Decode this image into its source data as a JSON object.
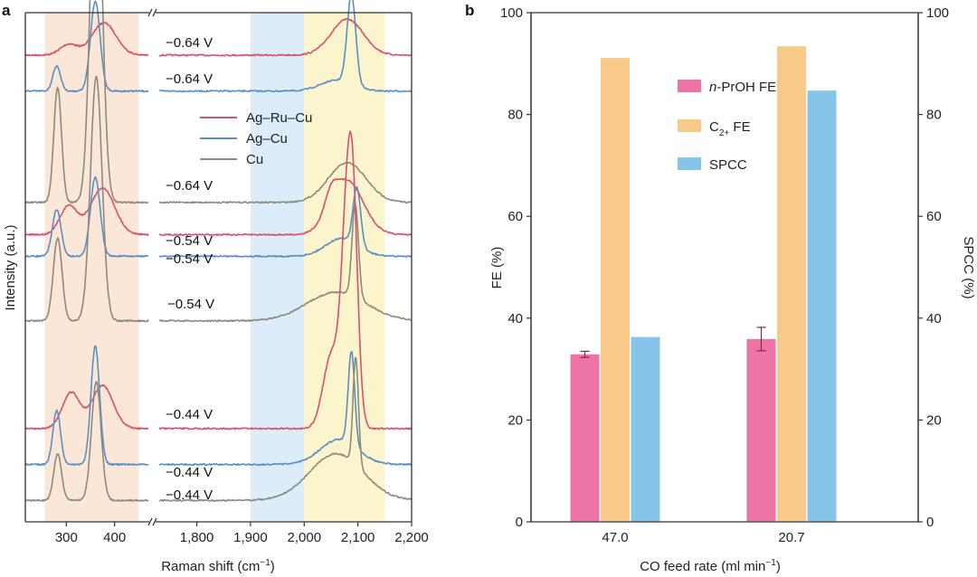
{
  "chart_data": [
    {
      "panel": "a",
      "type": "line",
      "title": "",
      "xlabel": "Raman shift (cm",
      "xlabel_sup": "−1",
      "xlabel_end": ")",
      "ylabel": "Intensity (a.u.)",
      "x_segments": [
        {
          "range": [
            215,
            470
          ],
          "ticks": [
            300,
            400
          ],
          "tick_labels": [
            "300",
            "400"
          ]
        },
        {
          "range": [
            1730,
            2200
          ],
          "ticks": [
            1800,
            1900,
            2000,
            2100,
            2200
          ],
          "tick_labels": [
            "1,800",
            "1,900",
            "2,000",
            "2,100",
            "2,200"
          ]
        }
      ],
      "axis_break": true,
      "shaded_regions": [
        {
          "range": [
            255,
            450
          ],
          "color": "#fbe7d8"
        },
        {
          "range": [
            1900,
            2000
          ],
          "color": "#dcecf8"
        },
        {
          "range": [
            2000,
            2150
          ],
          "color": "#fbf4cc"
        }
      ],
      "legend": {
        "placement": "center",
        "entries": [
          {
            "name": "Ag–Ru–Cu",
            "color": "#d9506e"
          },
          {
            "name": "Ag–Cu",
            "color": "#5b8fc4"
          },
          {
            "name": "Cu",
            "color": "#8c8a7e"
          }
        ]
      },
      "series": [
        {
          "name": "Ag–Ru–Cu",
          "potential": "−0.64 V",
          "offset": 0.0,
          "color": "#d9506e",
          "peaks": [
            [
              305,
              18,
              0.3
            ],
            [
              378,
              25,
              0.9
            ],
            [
              2080,
              30,
              1.0
            ]
          ]
        },
        {
          "name": "Ag–Cu",
          "potential": "−0.64 V",
          "offset": 1.0,
          "color": "#5b8fc4",
          "peaks": [
            [
              280,
              8,
              0.7
            ],
            [
              360,
              10,
              2.5
            ],
            [
              2088,
              8,
              2.5
            ],
            [
              2060,
              30,
              0.3
            ]
          ]
        },
        {
          "name": "Cu",
          "potential": "−0.64 V",
          "offset": 4.1,
          "color": "#8c8a7e",
          "peaks": [
            [
              282,
              8,
              3.2
            ],
            [
              362,
              12,
              10.2
            ],
            [
              2080,
              35,
              1.1
            ]
          ]
        },
        {
          "name": "Ag–Ru–Cu",
          "potential": "−0.54 V",
          "offset": 5.0,
          "color": "#d9506e",
          "peaks": [
            [
              305,
              18,
              0.8
            ],
            [
              375,
              25,
              1.3
            ],
            [
              2050,
              12,
              0.5
            ],
            [
              2080,
              30,
              1.5
            ]
          ]
        },
        {
          "name": "Ag–Cu",
          "potential": "−0.54 V",
          "offset": 5.6,
          "color": "#5b8fc4",
          "peaks": [
            [
              280,
              9,
              1.3
            ],
            [
              360,
              10,
              2.2
            ],
            [
              2098,
              7,
              1.6
            ],
            [
              2070,
              30,
              0.5
            ]
          ]
        },
        {
          "name": "Cu",
          "potential": "−0.54 V",
          "offset": 7.4,
          "color": "#8c8a7e",
          "peaks": [
            [
              282,
              9,
              2.3
            ],
            [
              362,
              12,
              6.8
            ],
            [
              2095,
              6,
              2.6
            ],
            [
              2060,
              55,
              0.8
            ]
          ]
        },
        {
          "name": "Ag–Ru–Cu",
          "potential": "−0.44 V",
          "offset": 10.4,
          "color": "#d9506e",
          "peaks": [
            [
              310,
              18,
              1.0
            ],
            [
              375,
              22,
              1.2
            ],
            [
              2050,
              15,
              2.0
            ],
            [
              2083,
              12,
              7.0
            ],
            [
              2093,
              8,
              2.0
            ]
          ]
        },
        {
          "name": "Ag–Cu",
          "potential": "−0.44 V",
          "offset": 11.4,
          "color": "#5b8fc4",
          "peaks": [
            [
              280,
              8,
              1.5
            ],
            [
              360,
              9,
              3.3
            ],
            [
              2088,
              6,
              2.6
            ],
            [
              2065,
              35,
              0.7
            ]
          ]
        },
        {
          "name": "Cu",
          "potential": "−0.44 V",
          "offset": 12.4,
          "color": "#8c8a7e",
          "peaks": [
            [
              282,
              8,
              1.3
            ],
            [
              362,
              10,
              3.3
            ],
            [
              2096,
              5,
              3.0
            ],
            [
              2060,
              50,
              1.3
            ]
          ]
        }
      ]
    },
    {
      "panel": "b",
      "type": "bar",
      "title": "",
      "xlabel": "CO feed rate (ml min",
      "xlabel_sup": "−1",
      "xlabel_end": ")",
      "ylabel": "FE (%)",
      "ylabel_right": "SPCC (%)",
      "ylim": [
        0,
        100
      ],
      "ylim_right": [
        0,
        100
      ],
      "yticks": [
        0,
        20,
        40,
        60,
        80,
        100
      ],
      "grid": false,
      "categories": [
        "47.0",
        "20.7"
      ],
      "legend": {
        "placement": "top-center",
        "entries": [
          {
            "name_italic": "n",
            "name": "-PrOH FE",
            "color": "#ef74a6"
          },
          {
            "name": "C",
            "name_sub": "2+",
            "name_end": " FE",
            "color": "#f9c98a"
          },
          {
            "name": "SPCC",
            "color": "#86c4ea"
          }
        ]
      },
      "series": [
        {
          "name": "n-PrOH FE",
          "color": "#ef74a6",
          "axis": "left",
          "values": [
            32.9,
            35.9
          ],
          "errors": [
            0.6,
            2.3
          ]
        },
        {
          "name": "C2+ FE",
          "color": "#f9c98a",
          "axis": "left",
          "values": [
            91.1,
            93.4
          ],
          "errors": [
            null,
            null
          ]
        },
        {
          "name": "SPCC",
          "color": "#86c4ea",
          "axis": "right",
          "values": [
            36.3,
            84.7
          ],
          "errors": [
            null,
            null
          ]
        }
      ],
      "right_axis_color": "#7fb3d5"
    }
  ]
}
